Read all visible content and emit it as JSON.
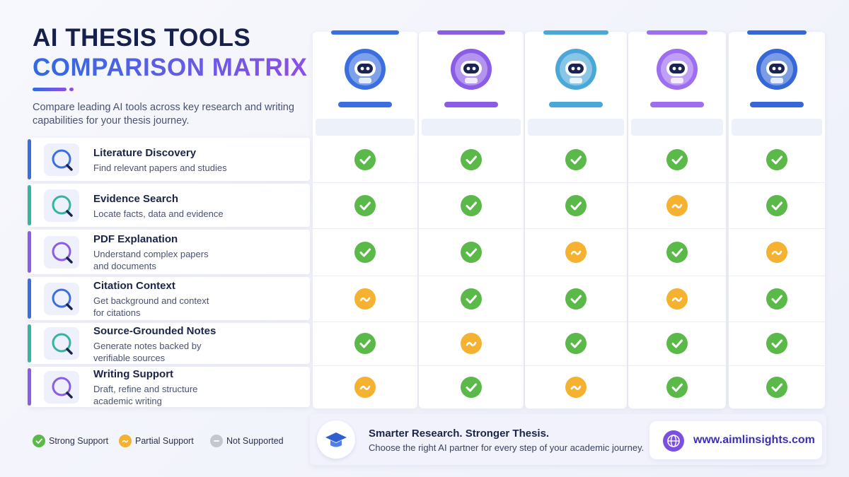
{
  "header": {
    "title_line1": "AI THESIS TOOLS",
    "title_line2": "COMPARISON MATRIX",
    "subtitle": "Compare leading AI tools across key research and writing capabilities for your thesis journey."
  },
  "tools": [
    {
      "color": "#3b6fe0"
    },
    {
      "color": "#8b5ce6"
    },
    {
      "color": "#4aa8d8"
    },
    {
      "color": "#9d6ef0"
    },
    {
      "color": "#3567d8"
    }
  ],
  "legend": [
    {
      "label": "Strong Support",
      "color": "#5bb94a"
    },
    {
      "label": "Partial Support",
      "color": "#f5b130"
    },
    {
      "label": "Not Supported",
      "color": "#c4c7cf"
    }
  ],
  "features": [
    {
      "title": "Literature Discovery",
      "description": [
        "Find relevant papers and studies"
      ],
      "accent": "#3b6fe0",
      "support": [
        0,
        0,
        0,
        0,
        0
      ]
    },
    {
      "title": "Evidence Search",
      "description": [
        "Locate facts, data and evidence"
      ],
      "accent": "#35b5a0",
      "support": [
        0,
        0,
        0,
        1,
        0
      ]
    },
    {
      "title": "PDF Explanation",
      "description": [
        "Understand complex papers",
        "and documents"
      ],
      "accent": "#8b5ce6",
      "support": [
        0,
        0,
        1,
        0,
        1
      ]
    },
    {
      "title": "Citation Context",
      "description": [
        "Get background and context",
        "for citations"
      ],
      "accent": "#3b6fe0",
      "support": [
        1,
        0,
        0,
        1,
        0
      ]
    },
    {
      "title": "Source-Grounded Notes",
      "description": [
        "Generate notes backed by",
        "verifiable sources"
      ],
      "accent": "#35b5a0",
      "support": [
        0,
        1,
        0,
        0,
        0
      ]
    },
    {
      "title": "Writing Support",
      "description": [
        "Draft, refine and structure",
        "academic writing"
      ],
      "accent": "#8b5ce6",
      "support": [
        1,
        0,
        1,
        0,
        0
      ]
    }
  ],
  "footer": {
    "headline": "Smarter Research. Stronger Thesis.",
    "text": "Choose the right AI partner for every step of your academic journey.",
    "website": "www.aimlinsights.com"
  }
}
